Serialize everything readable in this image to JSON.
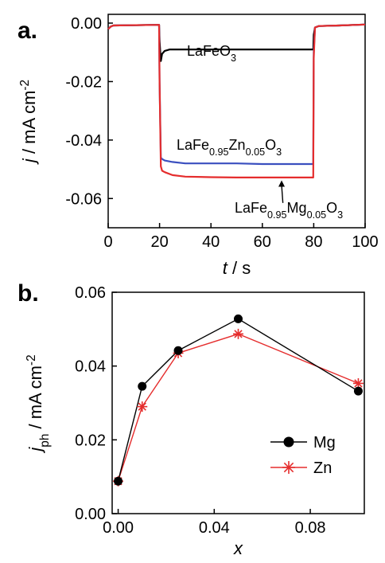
{
  "chart_data": [
    {
      "panel": "a.",
      "type": "line",
      "xlabel_var": "t",
      "xlabel_unit": " / s",
      "ylabel_var": "j",
      "ylabel_unit": " / mA cm",
      "ylabel_sup": "-2",
      "xlim": [
        0,
        100
      ],
      "ylim": [
        -0.07,
        0.003
      ],
      "xticks": [
        0,
        20,
        40,
        60,
        80,
        100
      ],
      "yticks": [
        0.0,
        -0.02,
        -0.04,
        -0.06
      ],
      "ytick_labels": [
        "0.00",
        "-0.02",
        "-0.04",
        "-0.06"
      ],
      "series": [
        {
          "name_parts": [
            [
              "LaFeO",
              ""
            ],
            [
              "3",
              "sub"
            ]
          ],
          "color": "#000000",
          "x": [
            0,
            1,
            2,
            19.8,
            20,
            20.5,
            21,
            22,
            24,
            30,
            40,
            50,
            60,
            70,
            79.8,
            80,
            80.5,
            82,
            90,
            100
          ],
          "y": [
            -0.002,
            -0.0012,
            -0.0008,
            -0.0006,
            -0.006,
            -0.013,
            -0.0105,
            -0.0095,
            -0.009,
            -0.009,
            -0.009,
            -0.009,
            -0.009,
            -0.009,
            -0.009,
            -0.004,
            -0.0015,
            -0.001,
            -0.0008,
            -0.0005
          ]
        },
        {
          "name_parts": [
            [
              "LaFe",
              ""
            ],
            [
              "0.95",
              "sub"
            ],
            [
              "Zn",
              ""
            ],
            [
              "0.05",
              "sub"
            ],
            [
              "O",
              ""
            ],
            [
              "3",
              "sub"
            ]
          ],
          "color": "#3a4fbf",
          "x": [
            0,
            1,
            2,
            19.8,
            20,
            20.5,
            21,
            22,
            25,
            30,
            40,
            50,
            60,
            70,
            79.8,
            80,
            80.5,
            82,
            90,
            100
          ],
          "y": [
            -0.002,
            -0.0012,
            -0.0008,
            -0.0006,
            -0.02,
            -0.046,
            -0.0465,
            -0.047,
            -0.0475,
            -0.048,
            -0.048,
            -0.048,
            -0.0482,
            -0.0482,
            -0.0482,
            -0.01,
            -0.0015,
            -0.001,
            -0.0008,
            -0.0005
          ]
        },
        {
          "name_parts": [
            [
              "LaFe",
              ""
            ],
            [
              "0.95",
              "sub"
            ],
            [
              "Mg",
              ""
            ],
            [
              "0.05",
              "sub"
            ],
            [
              "O",
              ""
            ],
            [
              "3",
              "sub"
            ]
          ],
          "color": "#e52d2d",
          "x": [
            0,
            1,
            2,
            19.8,
            20,
            20.5,
            21,
            22,
            25,
            30,
            40,
            50,
            60,
            70,
            79.8,
            80,
            80.5,
            82,
            90,
            100
          ],
          "y": [
            -0.002,
            -0.0012,
            -0.0008,
            -0.0006,
            -0.02,
            -0.049,
            -0.0505,
            -0.051,
            -0.052,
            -0.0525,
            -0.0527,
            -0.0528,
            -0.0528,
            -0.0528,
            -0.0528,
            -0.012,
            -0.0015,
            -0.001,
            -0.0008,
            -0.0005
          ]
        }
      ],
      "arrow": {
        "from": [
          68,
          -0.0615
        ],
        "to": [
          67.5,
          -0.0538
        ]
      }
    },
    {
      "panel": "b.",
      "type": "line",
      "xlabel_var": "x",
      "ylabel_var": "j",
      "ylabel_sub": "ph",
      "ylabel_unit": " / mA cm",
      "ylabel_sup": "-2",
      "xlim": [
        -0.0025,
        0.1025
      ],
      "ylim": [
        0,
        0.06
      ],
      "xticks": [
        0.0,
        0.04,
        0.08
      ],
      "xtick_labels": [
        "0.00",
        "0.04",
        "0.08"
      ],
      "yticks": [
        0.0,
        0.02,
        0.04,
        0.06
      ],
      "ytick_labels": [
        "0.00",
        "0.02",
        "0.04",
        "0.06"
      ],
      "legend_position": "bottom-right",
      "series": [
        {
          "name": "Mg",
          "marker": "circle",
          "color": "#000000",
          "x": [
            0.0,
            0.01,
            0.025,
            0.05,
            0.1
          ],
          "y": [
            0.0088,
            0.0345,
            0.0442,
            0.0528,
            0.0332
          ]
        },
        {
          "name": "Zn",
          "marker": "asterisk",
          "color": "#e52d2d",
          "x": [
            0.0,
            0.01,
            0.025,
            0.05,
            0.1
          ],
          "y": [
            0.0088,
            0.029,
            0.0435,
            0.0487,
            0.0353
          ]
        }
      ]
    }
  ]
}
